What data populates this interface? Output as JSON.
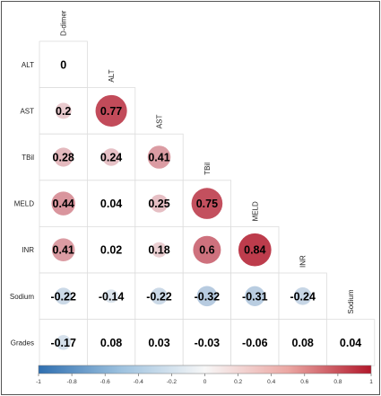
{
  "chart_data": {
    "type": "heatmap",
    "subtype": "lower-triangular correlation matrix",
    "columns": [
      "D-dimer",
      "ALT",
      "AST",
      "TBil",
      "MELD",
      "INR",
      "Sodium"
    ],
    "rows": [
      "ALT",
      "AST",
      "TBil",
      "MELD",
      "INR",
      "Sodium",
      "Grades"
    ],
    "values": [
      [
        0,
        null,
        null,
        null,
        null,
        null,
        null
      ],
      [
        0.2,
        0.77,
        null,
        null,
        null,
        null,
        null
      ],
      [
        0.28,
        0.24,
        0.41,
        null,
        null,
        null,
        null
      ],
      [
        0.44,
        0.04,
        0.25,
        0.75,
        null,
        null,
        null
      ],
      [
        0.41,
        0.02,
        0.18,
        0.6,
        0.84,
        null,
        null
      ],
      [
        -0.22,
        -0.14,
        -0.22,
        -0.32,
        -0.31,
        -0.24,
        null
      ],
      [
        -0.17,
        0.08,
        0.03,
        -0.03,
        -0.06,
        0.08,
        0.04
      ]
    ],
    "circle_shown": [
      [
        false,
        false,
        false,
        false,
        false,
        false,
        false
      ],
      [
        true,
        true,
        false,
        false,
        false,
        false,
        false
      ],
      [
        true,
        true,
        true,
        false,
        false,
        false,
        false
      ],
      [
        true,
        false,
        true,
        true,
        false,
        false,
        false
      ],
      [
        true,
        false,
        true,
        true,
        true,
        false,
        false
      ],
      [
        true,
        true,
        true,
        true,
        true,
        true,
        false
      ],
      [
        true,
        false,
        false,
        false,
        false,
        false,
        false
      ]
    ],
    "value_labels": [
      [
        "0",
        null,
        null,
        null,
        null,
        null,
        null
      ],
      [
        "0.2",
        "0.77",
        null,
        null,
        null,
        null,
        null
      ],
      [
        "0.28",
        "0.24",
        "0.41",
        null,
        null,
        null,
        null
      ],
      [
        "0.44",
        "0.04",
        "0.25",
        "0.75",
        null,
        null,
        null
      ],
      [
        "0.41",
        "0.02",
        "0.18",
        "0.6",
        "0.84",
        null,
        null
      ],
      [
        "-0.22",
        "-0.14",
        "-0.22",
        "-0.32",
        "-0.31",
        "-0.24",
        null
      ],
      [
        "-0.17",
        "0.08",
        "0.03",
        "-0.03",
        "-0.06",
        "0.08",
        "0.04"
      ]
    ],
    "colorbar": {
      "range": [
        -1,
        1
      ],
      "ticks": [
        -1,
        -0.8,
        -0.6,
        -0.4,
        -0.2,
        0,
        0.2,
        0.4,
        0.6,
        0.8,
        1
      ],
      "tick_labels": [
        "-1",
        "-0.8",
        "-0.6",
        "-0.4",
        "-0.2",
        "0",
        "0.2",
        "0.4",
        "0.6",
        "0.8",
        "1"
      ],
      "colors": {
        "negative": "#2f6fb0",
        "zero": "#f7f7f7",
        "positive": "#b2182b"
      }
    },
    "grid": true,
    "legend_position": "bottom",
    "title": "",
    "xlabel": "",
    "ylabel": ""
  }
}
